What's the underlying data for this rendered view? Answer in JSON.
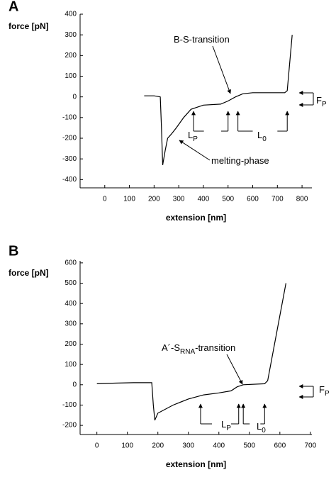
{
  "chart_data": [
    {
      "type": "line",
      "panel": "A",
      "ylabel": "force [pN]",
      "xlabel": "extension [nm]",
      "color": "#000000",
      "x": [
        160,
        200,
        225,
        230,
        235,
        245,
        255,
        270,
        290,
        320,
        350,
        400,
        470,
        500,
        530,
        560,
        600,
        730,
        740,
        760
      ],
      "values": [
        5,
        5,
        0,
        -150,
        -330,
        -260,
        -200,
        -180,
        -150,
        -100,
        -60,
        -40,
        -35,
        -20,
        0,
        15,
        20,
        20,
        30,
        300
      ],
      "xlim": [
        -100,
        840
      ],
      "ylim": [
        -440,
        400
      ],
      "xticks": [
        0,
        100,
        200,
        300,
        400,
        500,
        600,
        700,
        800
      ],
      "yticks": [
        -400,
        -300,
        -200,
        -100,
        0,
        100,
        200,
        300,
        400
      ],
      "annotations": [
        {
          "text": "B-S-transition"
        },
        {
          "text": "melting-phase"
        },
        {
          "text": "L",
          "sub": "P"
        },
        {
          "text": "L",
          "sub": "0"
        },
        {
          "text": "F",
          "sub": "P"
        }
      ]
    },
    {
      "type": "line",
      "panel": "B",
      "ylabel": "force [pN]",
      "xlabel": "extension [nm]",
      "color": "#000000",
      "x": [
        0,
        60,
        120,
        180,
        185,
        190,
        200,
        250,
        300,
        350,
        400,
        440,
        460,
        480,
        550,
        560,
        620
      ],
      "values": [
        5,
        8,
        10,
        10,
        -100,
        -175,
        -140,
        -100,
        -70,
        -50,
        -40,
        -30,
        -10,
        0,
        5,
        20,
        500
      ],
      "xlim": [
        -55,
        705
      ],
      "ylim": [
        -245,
        610
      ],
      "xticks": [
        0,
        100,
        200,
        300,
        400,
        500,
        600,
        700
      ],
      "yticks": [
        -200,
        -100,
        0,
        100,
        200,
        300,
        400,
        500,
        600
      ],
      "annotations": [
        {
          "text": "A´-S",
          "sub": "RNA",
          "after": "-transition"
        },
        {
          "text": "L",
          "sub": "P"
        },
        {
          "text": "L",
          "sub": "0"
        },
        {
          "text": "F",
          "sub": "P"
        }
      ]
    }
  ]
}
